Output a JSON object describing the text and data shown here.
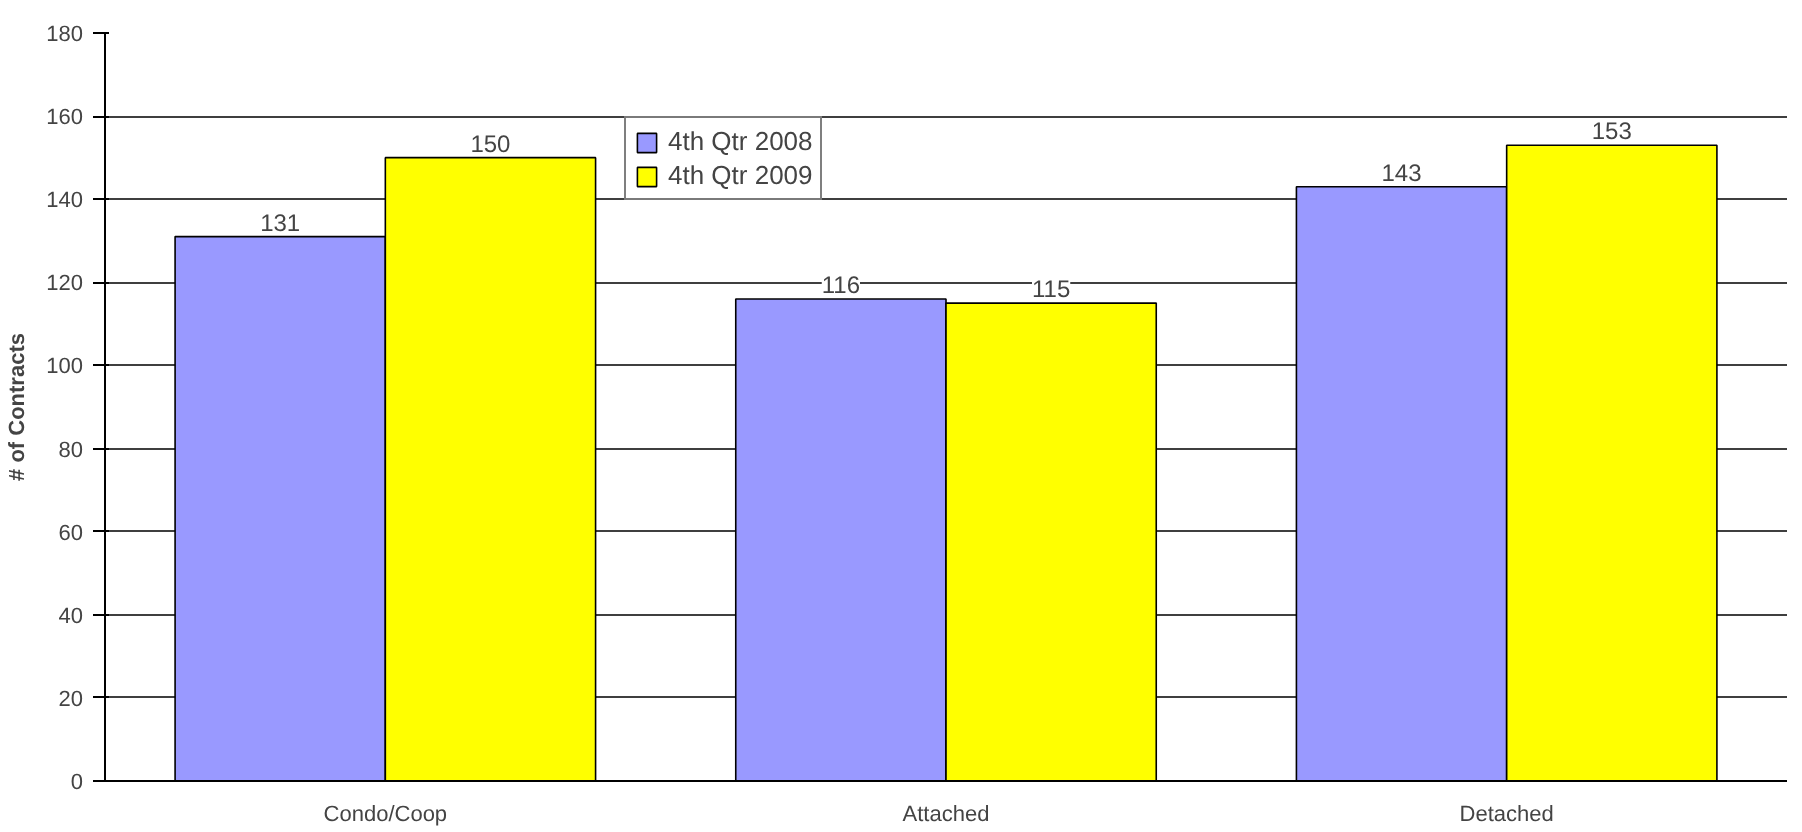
{
  "chart_data": {
    "type": "bar",
    "ylabel": "# of Contracts",
    "categories": [
      "Condo/Coop",
      "Attached",
      "Detached"
    ],
    "series": [
      {
        "name": "4th Qtr 2008",
        "color": "#9999ff",
        "values": [
          131,
          116,
          143
        ]
      },
      {
        "name": "4th Qtr 2009",
        "color": "#ffff00",
        "values": [
          150,
          115,
          153
        ]
      }
    ],
    "ylim": [
      0,
      180
    ],
    "yticks": [
      0,
      20,
      40,
      60,
      80,
      100,
      120,
      140,
      160,
      180
    ],
    "grid": "y",
    "legend": "top",
    "data_labels": true
  }
}
